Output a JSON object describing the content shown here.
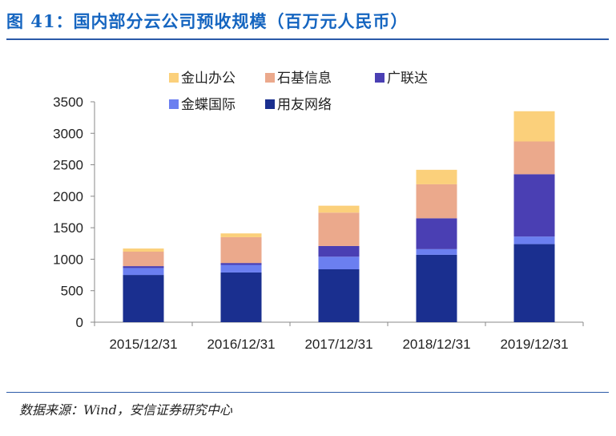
{
  "header": {
    "title": "图 41：国内部分云公司预收规模（百万元人民币）"
  },
  "footer": {
    "source": "数据来源：Wind，安信证券研究中心"
  },
  "chart_data": {
    "type": "bar",
    "stacked": true,
    "categories": [
      "2015/12/31",
      "2016/12/31",
      "2017/12/31",
      "2018/12/31",
      "2019/12/31"
    ],
    "series": [
      {
        "name": "用友网络",
        "color": "#1a2f8f",
        "values": [
          750,
          790,
          840,
          1070,
          1240
        ]
      },
      {
        "name": "金蝶国际",
        "color": "#6b7ff0",
        "values": [
          110,
          120,
          200,
          90,
          120
        ]
      },
      {
        "name": "广联达",
        "color": "#4a3fb3",
        "values": [
          30,
          30,
          170,
          490,
          990
        ]
      },
      {
        "name": "石基信息",
        "color": "#eba98c",
        "values": [
          230,
          410,
          530,
          540,
          520
        ]
      },
      {
        "name": "金山办公",
        "color": "#fbd07b",
        "values": [
          50,
          60,
          110,
          230,
          480
        ]
      }
    ],
    "ylim": [
      0,
      3500
    ],
    "yticks": [
      0,
      500,
      1000,
      1500,
      2000,
      2500,
      3000,
      3500
    ],
    "grid": false,
    "legend_position": "top",
    "xlabel": "",
    "ylabel": ""
  }
}
